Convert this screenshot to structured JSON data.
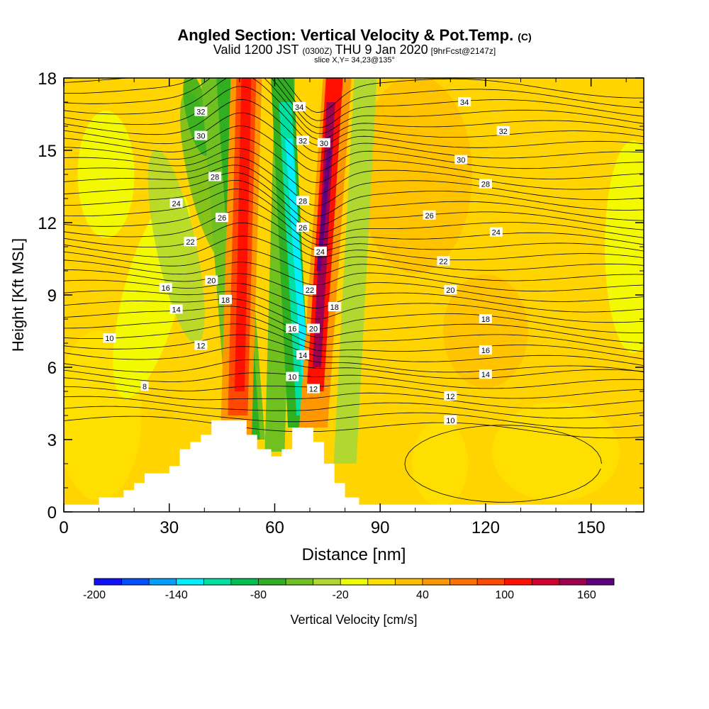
{
  "title": {
    "main": "Angled Section: Vertical Velocity & Pot.Temp.",
    "main_suffix": "(C)",
    "valid_prefix": "Valid 1200 JST",
    "valid_utc": "(0300Z)",
    "valid_date": "THU 9 Jan 2020",
    "valid_fcst": "[9hrFcst@2147z]",
    "slice": "slice X,Y= 34,23@135°"
  },
  "chart_data": {
    "type": "heatmap",
    "xlabel": "Distance [nm]",
    "ylabel": "Height [Kft MSL]",
    "xlim": [
      0,
      165
    ],
    "ylim": [
      0,
      18
    ],
    "xticks": [
      "0",
      "30",
      "60",
      "90",
      "120",
      "150"
    ],
    "yticks": [
      "0",
      "3",
      "6",
      "9",
      "12",
      "15",
      "18"
    ],
    "colorbar": {
      "label": "Vertical Velocity [cm/s]",
      "range": [
        -200,
        180
      ],
      "step": 20,
      "tick_labels": [
        "-200",
        "-140",
        "-80",
        "-20",
        "40",
        "100",
        "160"
      ],
      "tick_values": [
        -200,
        -140,
        -80,
        -20,
        40,
        100,
        160
      ],
      "colors": [
        "#1010ff",
        "#0050ff",
        "#00a0ff",
        "#00f0ff",
        "#00e0a0",
        "#00c050",
        "#30b020",
        "#70c020",
        "#b0d830",
        "#f0ff00",
        "#ffe000",
        "#ffc000",
        "#ff9800",
        "#ff7000",
        "#ff4800",
        "#ff1000",
        "#d00030",
        "#a00050",
        "#600080"
      ]
    },
    "terrain": [
      [
        0,
        0.3
      ],
      [
        10,
        0.3
      ],
      [
        10,
        0.6
      ],
      [
        17,
        0.6
      ],
      [
        17,
        0.9
      ],
      [
        20,
        0.9
      ],
      [
        20,
        1.2
      ],
      [
        23,
        1.2
      ],
      [
        23,
        1.6
      ],
      [
        30,
        1.6
      ],
      [
        30,
        1.9
      ],
      [
        33,
        1.9
      ],
      [
        33,
        2.6
      ],
      [
        36,
        2.6
      ],
      [
        36,
        2.9
      ],
      [
        39,
        2.9
      ],
      [
        39,
        3.2
      ],
      [
        42,
        3.2
      ],
      [
        42,
        3.8
      ],
      [
        52,
        3.8
      ],
      [
        52,
        3.2
      ],
      [
        55,
        3.2
      ],
      [
        55,
        2.6
      ],
      [
        59,
        2.6
      ],
      [
        59,
        2.3
      ],
      [
        62,
        2.3
      ],
      [
        62,
        2.6
      ],
      [
        65,
        2.6
      ],
      [
        65,
        3.5
      ],
      [
        71,
        3.5
      ],
      [
        71,
        2.9
      ],
      [
        74,
        2.9
      ],
      [
        74,
        2.0
      ],
      [
        77,
        2.0
      ],
      [
        77,
        1.2
      ],
      [
        80,
        1.2
      ],
      [
        80,
        0.6
      ],
      [
        84,
        0.6
      ],
      [
        84,
        0.3
      ],
      [
        165,
        0.3
      ]
    ],
    "updraft_bands": [
      {
        "x_bottom": 47,
        "x_top": 52,
        "value": 110
      },
      {
        "x_bottom": 68,
        "x_top": 75,
        "value": 150
      }
    ],
    "downdraft_bands": [
      {
        "x_bottom": 62,
        "x_top": 67,
        "value": -140
      },
      {
        "x_bottom": 57,
        "x_top": 40,
        "value": -60
      }
    ],
    "theta_contours": [
      {
        "value": 8,
        "label": "8",
        "x": 23,
        "y": 5.2
      },
      {
        "value": 10,
        "label": "10",
        "x": 13,
        "y": 7.2
      },
      {
        "value": 10,
        "label": "10",
        "x": 65,
        "y": 5.6
      },
      {
        "value": 10,
        "label": "10",
        "x": 110,
        "y": 3.8
      },
      {
        "value": 12,
        "label": "12",
        "x": 39,
        "y": 6.9
      },
      {
        "value": 12,
        "label": "12",
        "x": 71,
        "y": 5.1
      },
      {
        "value": 12,
        "label": "12",
        "x": 110,
        "y": 4.8
      },
      {
        "value": 14,
        "label": "14",
        "x": 32,
        "y": 8.4
      },
      {
        "value": 14,
        "label": "14",
        "x": 68,
        "y": 6.5
      },
      {
        "value": 14,
        "label": "14",
        "x": 120,
        "y": 5.7
      },
      {
        "value": 16,
        "label": "16",
        "x": 29,
        "y": 9.3
      },
      {
        "value": 16,
        "label": "16",
        "x": 65,
        "y": 7.6
      },
      {
        "value": 16,
        "label": "16",
        "x": 120,
        "y": 6.7
      },
      {
        "value": 18,
        "label": "18",
        "x": 46,
        "y": 8.8
      },
      {
        "value": 18,
        "label": "18",
        "x": 77,
        "y": 8.5
      },
      {
        "value": 18,
        "label": "18",
        "x": 120,
        "y": 8.0
      },
      {
        "value": 20,
        "label": "20",
        "x": 42,
        "y": 9.6
      },
      {
        "value": 20,
        "label": "20",
        "x": 71,
        "y": 7.6
      },
      {
        "value": 20,
        "label": "20",
        "x": 110,
        "y": 9.2
      },
      {
        "value": 22,
        "label": "22",
        "x": 36,
        "y": 11.2
      },
      {
        "value": 22,
        "label": "22",
        "x": 70,
        "y": 9.2
      },
      {
        "value": 22,
        "label": "22",
        "x": 108,
        "y": 10.4
      },
      {
        "value": 24,
        "label": "24",
        "x": 32,
        "y": 12.8
      },
      {
        "value": 24,
        "label": "24",
        "x": 73,
        "y": 10.8
      },
      {
        "value": 24,
        "label": "24",
        "x": 123,
        "y": 11.6
      },
      {
        "value": 26,
        "label": "26",
        "x": 45,
        "y": 12.2
      },
      {
        "value": 26,
        "label": "26",
        "x": 68,
        "y": 11.8
      },
      {
        "value": 26,
        "label": "26",
        "x": 104,
        "y": 12.3
      },
      {
        "value": 28,
        "label": "28",
        "x": 43,
        "y": 13.9
      },
      {
        "value": 28,
        "label": "28",
        "x": 68,
        "y": 12.9
      },
      {
        "value": 28,
        "label": "28",
        "x": 120,
        "y": 13.6
      },
      {
        "value": 30,
        "label": "30",
        "x": 39,
        "y": 15.6
      },
      {
        "value": 30,
        "label": "30",
        "x": 74,
        "y": 15.3
      },
      {
        "value": 30,
        "label": "30",
        "x": 113,
        "y": 14.6
      },
      {
        "value": 32,
        "label": "32",
        "x": 39,
        "y": 16.6
      },
      {
        "value": 32,
        "label": "32",
        "x": 68,
        "y": 15.4
      },
      {
        "value": 32,
        "label": "32",
        "x": 125,
        "y": 15.8
      },
      {
        "value": 34,
        "label": "34",
        "x": 67,
        "y": 16.8
      },
      {
        "value": 34,
        "label": "34",
        "x": 114,
        "y": 17.0
      }
    ]
  }
}
